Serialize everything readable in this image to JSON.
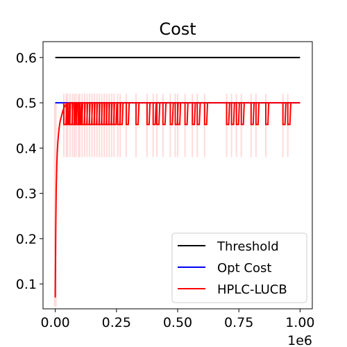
{
  "chart_data": {
    "type": "line",
    "title": "Cost",
    "xlabel": "",
    "ylabel": "",
    "x_offset_text": "1e6",
    "xlim": [
      -0.05,
      1.05
    ],
    "ylim": [
      0.045,
      0.635
    ],
    "xticks": [
      0.0,
      0.25,
      0.5,
      0.75,
      1.0
    ],
    "xtick_labels": [
      "0.00",
      "0.25",
      "0.50",
      "0.75",
      "1.00"
    ],
    "yticks": [
      0.1,
      0.2,
      0.3,
      0.4,
      0.5,
      0.6
    ],
    "ytick_labels": [
      "0.1",
      "0.2",
      "0.3",
      "0.4",
      "0.5",
      "0.6"
    ],
    "grid": false,
    "legend_position": "lower-right",
    "series": [
      {
        "name": "Threshold",
        "color": "#000000",
        "x": [
          0.0,
          1.0
        ],
        "y": [
          0.6,
          0.6
        ]
      },
      {
        "name": "Opt Cost",
        "color": "#0000ff",
        "x": [
          0.0,
          1.0
        ],
        "y": [
          0.5,
          0.5
        ]
      },
      {
        "name": "HPLC-LUCB",
        "color": "#ff0000",
        "x": [
          0.0,
          0.002,
          0.004,
          0.006,
          0.008,
          0.01,
          0.013,
          0.016,
          0.02,
          0.025,
          0.03,
          0.035,
          0.04,
          0.05,
          0.06,
          1.0
        ],
        "y": [
          0.07,
          0.22,
          0.31,
          0.36,
          0.39,
          0.41,
          0.43,
          0.445,
          0.46,
          0.47,
          0.48,
          0.488,
          0.494,
          0.498,
          0.5,
          0.5
        ],
        "dips": [
          0.035,
          0.045,
          0.05,
          0.06,
          0.07,
          0.078,
          0.085,
          0.095,
          0.1,
          0.11,
          0.12,
          0.13,
          0.14,
          0.15,
          0.16,
          0.17,
          0.18,
          0.19,
          0.2,
          0.21,
          0.22,
          0.23,
          0.24,
          0.255,
          0.265,
          0.29,
          0.33,
          0.375,
          0.4,
          0.415,
          0.44,
          0.47,
          0.49,
          0.5,
          0.53,
          0.56,
          0.58,
          0.61,
          0.7,
          0.72,
          0.74,
          0.76,
          0.8,
          0.82,
          0.86,
          0.93,
          0.95
        ],
        "dip_value": 0.452,
        "band_low": 0.38,
        "band_high": 0.52
      }
    ]
  }
}
